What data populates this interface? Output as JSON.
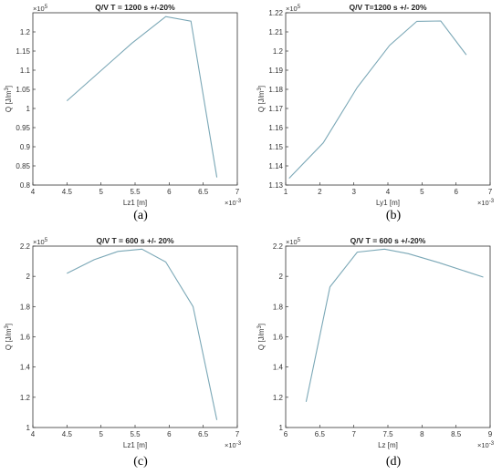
{
  "chart_data": [
    {
      "type": "line",
      "title": "Q/V T = 1200 s +/-20%",
      "xlabel": "Lz1 [m]",
      "ylabel": "Q [J/m",
      "ylabel_sup": "3",
      "ylabel_end": "]",
      "xlim": [
        4,
        7
      ],
      "ylim": [
        0.8,
        1.25
      ],
      "xticks": [
        "4",
        "4.5",
        "5",
        "5.5",
        "6",
        "6.5",
        "7"
      ],
      "yticks": [
        "0.8",
        "0.85",
        "0.9",
        "0.95",
        "1",
        "1.05",
        "1.1",
        "1.15",
        "1.2"
      ],
      "x_multiplier": "×10",
      "x_multiplier_exp": "-3",
      "y_multiplier": "×10",
      "y_multiplier_exp": "5",
      "caption": "(a)",
      "x": [
        4.5,
        5.45,
        5.95,
        6.32,
        6.7
      ],
      "y": [
        1.02,
        1.17,
        1.24,
        1.228,
        0.82
      ],
      "line_color": "#7aa7b6"
    },
    {
      "type": "line",
      "title": "Q/V T=1200 s +/- 20%",
      "xlabel": "Ly1 [m]",
      "ylabel": "Q [J/m",
      "ylabel_sup": "3",
      "ylabel_end": "]",
      "xlim": [
        1,
        7
      ],
      "ylim": [
        1.13,
        1.22
      ],
      "xticks": [
        "1",
        "2",
        "3",
        "4",
        "5",
        "6",
        "7"
      ],
      "yticks": [
        "1.13",
        "1.14",
        "1.15",
        "1.16",
        "1.17",
        "1.18",
        "1.19",
        "1.2",
        "1.21",
        "1.22"
      ],
      "x_multiplier": "×10",
      "x_multiplier_exp": "-3",
      "y_multiplier": "×10",
      "y_multiplier_exp": "5",
      "caption": "(b)",
      "x": [
        1.1,
        2.1,
        3.1,
        4.05,
        4.85,
        5.55,
        6.3
      ],
      "y": [
        1.1335,
        1.152,
        1.181,
        1.203,
        1.2155,
        1.2157,
        1.198
      ],
      "line_color": "#7aa7b6"
    },
    {
      "type": "line",
      "title": "Q/V T = 600 s +/- 20%",
      "xlabel": "Lz1 [m]",
      "ylabel": "Q [J/m",
      "ylabel_sup": "3",
      "ylabel_end": "]",
      "xlim": [
        4,
        7
      ],
      "ylim": [
        1,
        2.2
      ],
      "xticks": [
        "4",
        "4.5",
        "5",
        "5.5",
        "6",
        "6.5",
        "7"
      ],
      "yticks": [
        "1",
        "1.2",
        "1.4",
        "1.6",
        "1.8",
        "2",
        "2.2"
      ],
      "x_multiplier": "×10",
      "x_multiplier_exp": "-3",
      "y_multiplier": "×10",
      "y_multiplier_exp": "5",
      "caption": "(c)",
      "x": [
        4.5,
        4.9,
        5.25,
        5.6,
        5.95,
        6.35,
        6.7
      ],
      "y": [
        2.02,
        2.11,
        2.165,
        2.18,
        2.095,
        1.8,
        1.05
      ],
      "line_color": "#7aa7b6"
    },
    {
      "type": "line",
      "title": "Q/V T = 600 s +/-20%",
      "xlabel": "Lz [m]",
      "ylabel": "Q [J/m",
      "ylabel_sup": "3",
      "ylabel_end": "]",
      "xlim": [
        6,
        9
      ],
      "ylim": [
        1,
        2.2
      ],
      "xticks": [
        "6",
        "6.5",
        "7",
        "7.5",
        "8",
        "8.5",
        "9"
      ],
      "yticks": [
        "1",
        "1.2",
        "1.4",
        "1.6",
        "1.8",
        "2",
        "2.2"
      ],
      "x_multiplier": "×10",
      "x_multiplier_exp": "-3",
      "y_multiplier": "×10",
      "y_multiplier_exp": "5",
      "caption": "(d)",
      "x": [
        6.3,
        6.65,
        7.05,
        7.45,
        7.8,
        8.25,
        8.9
      ],
      "y": [
        1.17,
        1.93,
        2.16,
        2.18,
        2.15,
        2.09,
        1.995
      ],
      "line_color": "#7aa7b6"
    }
  ]
}
